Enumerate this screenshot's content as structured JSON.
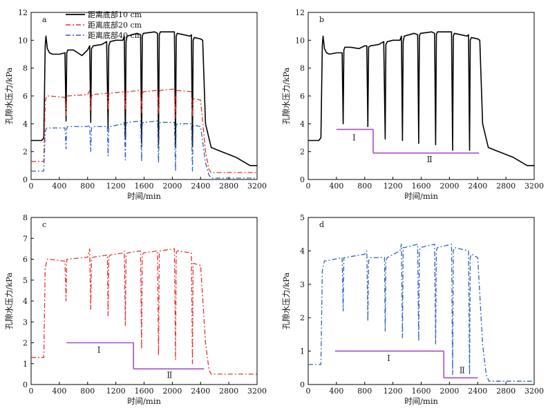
{
  "colors": {
    "s10": "#000000",
    "s20": "#e8312a",
    "s40": "#2f5fbd",
    "stage": "#a94bc4"
  },
  "chart_data": [
    {
      "id": "a",
      "panel_label": "a",
      "type": "line",
      "xlabel": "时间/min",
      "ylabel": "孔隙水压力/kPa",
      "xlim": [
        0,
        3200
      ],
      "ylim": [
        0,
        12
      ],
      "xticks": [
        0,
        400,
        800,
        1200,
        1600,
        2000,
        2400,
        2800,
        3200
      ],
      "yticks": [
        0,
        2,
        4,
        6,
        8,
        10,
        12
      ],
      "legend": {
        "position": "top-left"
      },
      "series": [
        {
          "key": "s10",
          "name": "距离底部10 cm",
          "style": "solid",
          "x": [
            0,
            150,
            180,
            200,
            210,
            230,
            260,
            300,
            400,
            480,
            495,
            505,
            520,
            600,
            720,
            800,
            830,
            845,
            855,
            880,
            1000,
            1070,
            1090,
            1100,
            1120,
            1200,
            1300,
            1320,
            1335,
            1345,
            1360,
            1500,
            1550,
            1565,
            1575,
            1590,
            1750,
            1790,
            1805,
            1815,
            1830,
            2000,
            2030,
            2045,
            2055,
            2070,
            2250,
            2270,
            2285,
            2295,
            2310,
            2400,
            2430,
            2470,
            2550,
            2650,
            2700,
            2800,
            2900,
            3000,
            3100,
            3200
          ],
          "y": [
            2.8,
            2.8,
            3.0,
            9.6,
            10.3,
            9.4,
            9.1,
            9.0,
            9.0,
            9.1,
            4.2,
            9.1,
            9.3,
            9.3,
            8.9,
            9.3,
            9.6,
            4.1,
            9.4,
            9.6,
            9.7,
            9.9,
            3.7,
            9.6,
            9.9,
            10.0,
            10.0,
            10.3,
            2.9,
            9.9,
            10.3,
            10.5,
            10.4,
            2.6,
            10.3,
            10.5,
            10.6,
            10.5,
            2.5,
            10.4,
            10.6,
            10.6,
            10.6,
            2.3,
            10.3,
            10.5,
            10.3,
            10.4,
            2.4,
            10.0,
            10.2,
            10.1,
            10.0,
            4.0,
            2.3,
            2.1,
            2.0,
            1.8,
            1.6,
            1.3,
            1.0,
            1.0
          ]
        },
        {
          "key": "s20",
          "name": "距离底部20 cm",
          "style": "dashdot",
          "x": [
            0,
            150,
            180,
            200,
            220,
            260,
            480,
            495,
            505,
            520,
            800,
            830,
            845,
            855,
            880,
            1080,
            1090,
            1100,
            1120,
            1300,
            1320,
            1335,
            1345,
            1360,
            1550,
            1565,
            1575,
            1590,
            1790,
            1805,
            1815,
            1830,
            2030,
            2045,
            2055,
            2070,
            2270,
            2285,
            2295,
            2310,
            2400,
            2470,
            2520,
            2550,
            2650,
            2800,
            3000,
            3200
          ],
          "y": [
            1.3,
            1.3,
            1.3,
            5.6,
            6.0,
            6.0,
            5.9,
            4.6,
            6.0,
            6.0,
            6.1,
            6.4,
            5.0,
            6.0,
            6.1,
            6.2,
            5.0,
            6.1,
            6.2,
            6.3,
            6.4,
            5.0,
            6.2,
            6.3,
            6.4,
            4.8,
            6.2,
            6.3,
            6.4,
            4.7,
            6.3,
            6.4,
            6.5,
            4.4,
            6.3,
            6.4,
            6.3,
            4.5,
            5.8,
            5.8,
            5.7,
            2.0,
            0.7,
            0.5,
            0.5,
            0.5,
            0.5,
            0.5
          ]
        },
        {
          "key": "s40",
          "name": "距离底部40 cm",
          "style": "dashdot",
          "x": [
            0,
            150,
            180,
            200,
            220,
            260,
            480,
            495,
            505,
            520,
            800,
            830,
            845,
            855,
            880,
            1080,
            1090,
            1100,
            1120,
            1300,
            1320,
            1335,
            1345,
            1360,
            1550,
            1565,
            1575,
            1590,
            1790,
            1805,
            1815,
            1830,
            2030,
            2045,
            2055,
            2070,
            2270,
            2285,
            2295,
            2310,
            2400,
            2470,
            2520,
            2560,
            2650,
            2800,
            3000,
            3200
          ],
          "y": [
            0.6,
            0.6,
            0.6,
            3.4,
            3.7,
            3.7,
            3.7,
            2.2,
            3.7,
            3.8,
            3.8,
            3.9,
            2.0,
            3.7,
            3.8,
            3.8,
            1.7,
            3.7,
            3.8,
            4.0,
            4.1,
            1.4,
            4.0,
            4.1,
            4.2,
            1.3,
            4.0,
            4.1,
            4.2,
            1.2,
            4.0,
            4.1,
            4.1,
            0.6,
            3.9,
            4.0,
            4.0,
            0.6,
            3.8,
            3.9,
            3.8,
            1.2,
            0.3,
            0.1,
            0.1,
            0.1,
            0.1,
            0.1
          ]
        }
      ],
      "stages": []
    },
    {
      "id": "b",
      "panel_label": "b",
      "type": "line",
      "xlabel": "时间/min",
      "ylabel": "孔隙水压力/kPa",
      "xlim": [
        0,
        3200
      ],
      "ylim": [
        0,
        12
      ],
      "xticks": [
        0,
        400,
        800,
        1200,
        1600,
        2000,
        2400,
        2800,
        3200
      ],
      "yticks": [
        0,
        2,
        4,
        6,
        8,
        10,
        12
      ],
      "series": [
        {
          "key": "s10",
          "name": "",
          "style": "solid",
          "x": [
            0,
            150,
            180,
            200,
            210,
            230,
            260,
            300,
            400,
            480,
            495,
            505,
            520,
            600,
            720,
            800,
            830,
            845,
            855,
            880,
            1000,
            1070,
            1090,
            1100,
            1120,
            1200,
            1300,
            1320,
            1335,
            1345,
            1360,
            1500,
            1550,
            1565,
            1575,
            1590,
            1750,
            1790,
            1805,
            1815,
            1830,
            2000,
            2030,
            2045,
            2055,
            2070,
            2250,
            2270,
            2285,
            2295,
            2310,
            2400,
            2430,
            2470,
            2550,
            2650,
            2700,
            2800,
            2900,
            3000,
            3100,
            3200
          ],
          "y": [
            2.8,
            2.8,
            3.0,
            9.6,
            10.3,
            9.4,
            9.1,
            9.0,
            9.1,
            9.1,
            4.0,
            9.3,
            9.5,
            9.5,
            9.4,
            9.6,
            9.6,
            3.8,
            9.5,
            9.6,
            9.7,
            9.9,
            2.9,
            9.7,
            9.9,
            10.0,
            10.0,
            10.3,
            2.8,
            9.9,
            10.3,
            10.5,
            10.4,
            2.6,
            10.3,
            10.5,
            10.6,
            10.5,
            2.5,
            10.4,
            10.6,
            10.6,
            10.6,
            2.1,
            10.3,
            10.5,
            10.3,
            10.4,
            2.1,
            10.0,
            10.2,
            10.1,
            10.0,
            4.0,
            2.3,
            2.1,
            2.0,
            1.8,
            1.6,
            1.3,
            1.0,
            1.0
          ]
        }
      ],
      "stages": [
        {
          "label": "Ⅰ",
          "x": [
            400,
            920
          ],
          "y": 3.6,
          "label_at": [
            650,
            3.0
          ]
        },
        {
          "label": "Ⅱ",
          "x": [
            920,
            2420
          ],
          "y": 1.9,
          "label_at": [
            1720,
            1.45
          ]
        }
      ],
      "stage_drop": {
        "x": 920,
        "y": [
          3.6,
          1.9
        ]
      }
    },
    {
      "id": "c",
      "panel_label": "c",
      "type": "line",
      "xlabel": "时间/min",
      "ylabel": "孔隙水压力/kPa",
      "xlim": [
        0,
        3200
      ],
      "ylim": [
        0,
        8
      ],
      "xticks": [
        0,
        400,
        800,
        1200,
        1600,
        2000,
        2400,
        2800,
        3200
      ],
      "yticks": [
        0,
        1,
        2,
        3,
        4,
        5,
        6,
        7,
        8
      ],
      "series": [
        {
          "key": "s20",
          "name": "",
          "style": "dashdot",
          "x": [
            0,
            150,
            180,
            200,
            230,
            260,
            480,
            495,
            505,
            520,
            800,
            830,
            845,
            855,
            880,
            1080,
            1090,
            1100,
            1120,
            1300,
            1320,
            1335,
            1345,
            1360,
            1550,
            1565,
            1575,
            1590,
            1790,
            1805,
            1815,
            1830,
            2030,
            2045,
            2055,
            2070,
            2270,
            2285,
            2295,
            2310,
            2400,
            2470,
            2520,
            2550,
            2650,
            2800,
            3000,
            3200
          ],
          "y": [
            1.3,
            1.3,
            1.3,
            5.6,
            6.0,
            6.0,
            5.9,
            4.0,
            6.0,
            6.0,
            6.1,
            6.5,
            3.6,
            6.0,
            6.1,
            6.2,
            3.3,
            6.1,
            6.2,
            6.3,
            6.4,
            2.8,
            6.2,
            6.3,
            6.4,
            1.7,
            6.2,
            6.3,
            6.4,
            1.4,
            6.3,
            6.4,
            6.5,
            1.2,
            6.3,
            6.4,
            6.3,
            1.0,
            5.8,
            5.8,
            5.7,
            2.0,
            0.7,
            0.5,
            0.5,
            0.5,
            0.5,
            0.5
          ]
        }
      ],
      "stages": [
        {
          "label": "Ⅰ",
          "x": [
            500,
            1450
          ],
          "y": 2.0,
          "label_at": [
            960,
            1.65
          ]
        },
        {
          "label": "Ⅱ",
          "x": [
            1450,
            2450
          ],
          "y": 0.75,
          "label_at": [
            1960,
            0.45
          ]
        }
      ],
      "stage_drop": {
        "x": 1450,
        "y": [
          2.0,
          0.75
        ]
      }
    },
    {
      "id": "d",
      "panel_label": "d",
      "type": "line",
      "xlabel": "时间/min",
      "ylabel": "孔隙水压力/kPa",
      "xlim": [
        0,
        3200
      ],
      "ylim": [
        0,
        5
      ],
      "xticks": [
        0,
        400,
        800,
        1200,
        1600,
        2000,
        2400,
        2800,
        3200
      ],
      "yticks": [
        0,
        1,
        2,
        3,
        4,
        5
      ],
      "series": [
        {
          "key": "s40",
          "name": "",
          "style": "dashdot",
          "x": [
            0,
            150,
            180,
            200,
            230,
            260,
            480,
            495,
            505,
            520,
            800,
            830,
            845,
            855,
            880,
            1080,
            1090,
            1100,
            1120,
            1300,
            1320,
            1335,
            1345,
            1360,
            1550,
            1565,
            1575,
            1590,
            1790,
            1805,
            1815,
            1830,
            2030,
            2045,
            2055,
            2070,
            2270,
            2285,
            2295,
            2310,
            2400,
            2470,
            2520,
            2560,
            2650,
            2800,
            3000,
            3200
          ],
          "y": [
            0.6,
            0.6,
            0.6,
            3.4,
            3.7,
            3.7,
            3.8,
            2.2,
            3.8,
            3.8,
            3.9,
            4.0,
            1.9,
            3.7,
            3.8,
            3.8,
            1.6,
            3.7,
            3.8,
            4.0,
            4.2,
            1.4,
            4.1,
            4.1,
            4.2,
            1.3,
            4.0,
            4.1,
            4.2,
            1.2,
            4.0,
            4.1,
            4.2,
            0.3,
            4.0,
            4.1,
            4.0,
            0.3,
            3.8,
            3.9,
            3.8,
            1.2,
            0.3,
            0.1,
            0.1,
            0.1,
            0.1,
            0.1
          ]
        }
      ],
      "stages": [
        {
          "label": "Ⅰ",
          "x": [
            380,
            1920
          ],
          "y": 1.0,
          "label_at": [
            1140,
            0.78
          ]
        },
        {
          "label": "Ⅱ",
          "x": [
            1920,
            2400
          ],
          "y": 0.2,
          "label_at": [
            2180,
            0.42
          ]
        }
      ],
      "stage_drop": {
        "x": 1920,
        "y": [
          1.0,
          0.2
        ]
      }
    }
  ]
}
